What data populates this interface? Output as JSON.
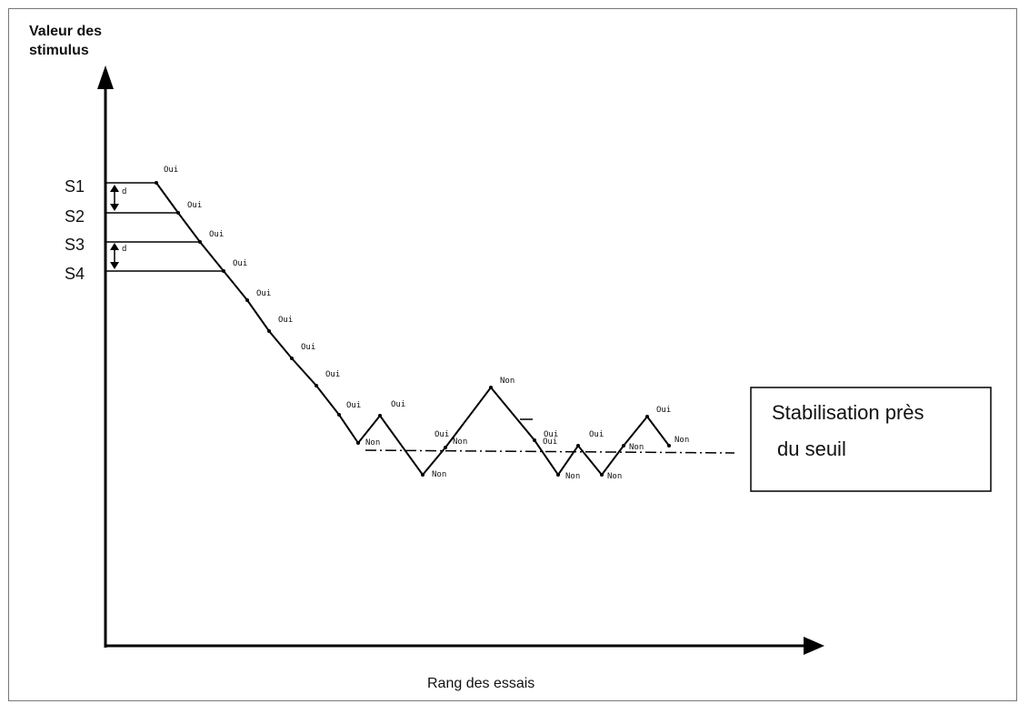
{
  "axes": {
    "y_label_line1": "Valeur des",
    "y_label_line2": "stimulus",
    "x_label": "Rang des essais"
  },
  "levels": [
    "S1",
    "S2",
    "S3",
    "S4"
  ],
  "step_label": "d",
  "responses": {
    "yes": "Oui",
    "no": "Non"
  },
  "note": {
    "line1": "Stabilisation près",
    "line2": "du seuil"
  },
  "trials": [
    {
      "response": "yes"
    },
    {
      "response": "yes"
    },
    {
      "response": "yes"
    },
    {
      "response": "yes"
    },
    {
      "response": "yes"
    },
    {
      "response": "yes"
    },
    {
      "response": "yes"
    },
    {
      "response": "yes"
    },
    {
      "response": "yes"
    },
    {
      "response": "no"
    },
    {
      "response": "yes"
    },
    {
      "response": "no"
    },
    {
      "response": "yes"
    },
    {
      "response": "no"
    },
    {
      "response": "no"
    },
    {
      "response": "yes"
    },
    {
      "response": "yes"
    },
    {
      "response": "no"
    },
    {
      "response": "yes"
    },
    {
      "response": "no"
    },
    {
      "response": "no"
    },
    {
      "response": "yes"
    },
    {
      "response": "no"
    }
  ]
}
